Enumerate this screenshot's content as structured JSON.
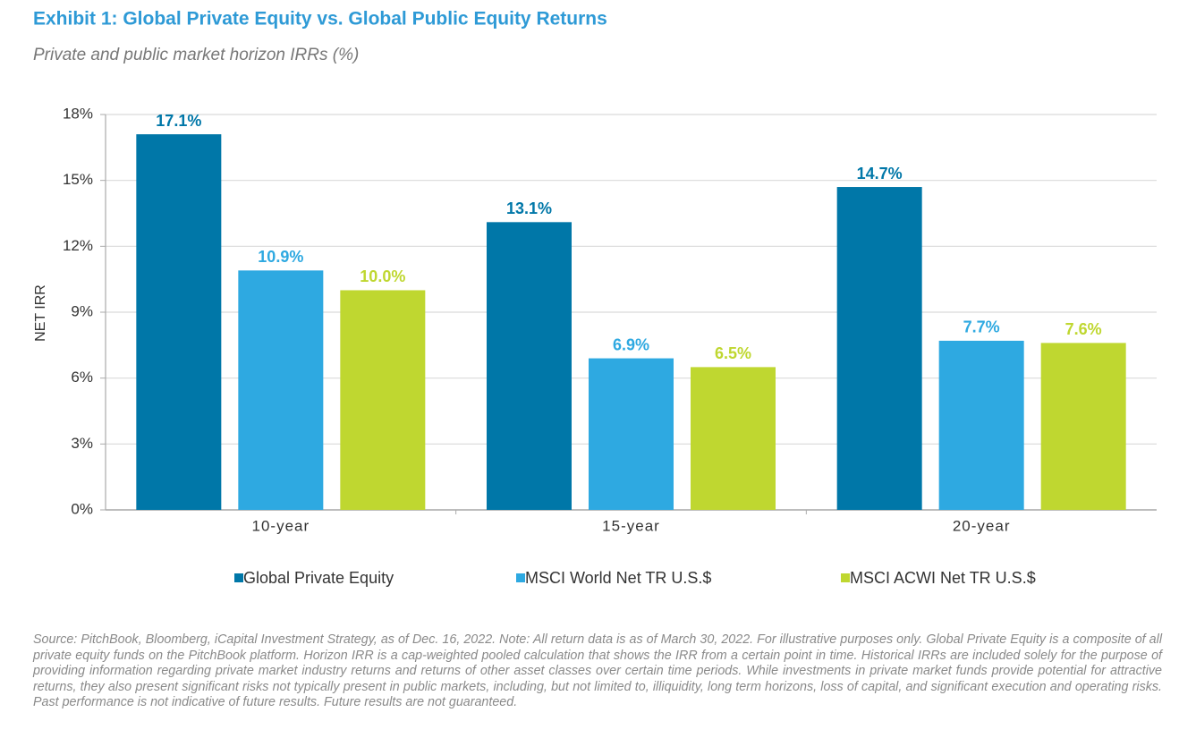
{
  "chart_data": {
    "type": "bar",
    "title": "Exhibit 1: Global Private Equity vs. Global Public Equity Returns",
    "subtitle": "Private and public market horizon IRRs (%)",
    "y_label": "NET IRR",
    "categories": [
      "10-year",
      "15-year",
      "20-year"
    ],
    "series": [
      {
        "name": "Global Private Equity",
        "color": "#0077a8",
        "values": [
          17.1,
          13.1,
          14.7
        ],
        "value_labels": [
          "17.1%",
          "13.1%",
          "14.7%"
        ]
      },
      {
        "name": "MSCI World Net TR U.S.$",
        "color": "#2ea9e1",
        "values": [
          10.9,
          6.9,
          7.7
        ],
        "value_labels": [
          "10.9%",
          "6.9%",
          "7.7%"
        ]
      },
      {
        "name": "MSCI ACWI Net TR U.S.$",
        "color": "#bfd730",
        "values": [
          10.0,
          6.5,
          7.6
        ],
        "value_labels": [
          "10.0%",
          "6.5%",
          "7.6%"
        ]
      }
    ],
    "ylim": [
      0,
      18
    ],
    "yticks": [
      {
        "value": 0,
        "label": "0%"
      },
      {
        "value": 3,
        "label": "3%"
      },
      {
        "value": 6,
        "label": "6%"
      },
      {
        "value": 9,
        "label": "9%"
      },
      {
        "value": 12,
        "label": "12%"
      },
      {
        "value": 15,
        "label": "15%"
      },
      {
        "value": 18,
        "label": "18%"
      }
    ],
    "grid": true,
    "legend": "bottom",
    "source": "Source: PitchBook, Bloomberg, iCapital Investment Strategy, as of Dec. 16, 2022. Note: All  return data is as of March 30, 2022. For illustrative purposes only. Global Private Equity is a composite of all private equity funds on the PitchBook platform. Horizon IRR is a cap-weighted pooled calculation that shows the IRR from a certain point in time. Historical IRRs are included solely for the purpose of providing information regarding private market industry returns and returns of other asset classes over certain time periods. While investments in private market funds provide potential for attractive returns, they also present significant risks not typically present in public markets, including, but not limited to, illiquidity, long term horizons, loss of capital, and significant execution and operating risks. Past performance is not indicative of future results. Future results are not guaranteed."
  }
}
